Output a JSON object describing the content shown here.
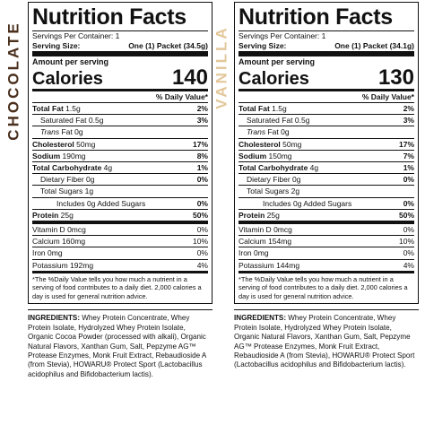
{
  "side_labels": {
    "left": "CHOCOLATE",
    "right": "VANILLA"
  },
  "colors": {
    "chocolate_label": "#4a2f1c",
    "vanilla_label": "#e3c79a"
  },
  "panels": [
    {
      "title": "Nutrition Facts",
      "servings": "Servings Per Container: 1",
      "serving_size_label": "Serving Size:",
      "serving_size_value": "One (1) Packet (34.5g)",
      "amount_per_serving": "Amount per serving",
      "calories_label": "Calories",
      "calories_value": "140",
      "dv_header": "% Daily Value*",
      "rows": {
        "total_fat": {
          "label": "Total Fat",
          "amount": "1.5g",
          "dv": "2%"
        },
        "sat_fat": {
          "label": "Saturated Fat",
          "amount": "0.5g",
          "dv": "3%"
        },
        "trans_fat": {
          "label": "Trans",
          "amount": "Fat 0g"
        },
        "cholesterol": {
          "label": "Cholesterol",
          "amount": "50mg",
          "dv": "17%"
        },
        "sodium": {
          "label": "Sodium",
          "amount": "190mg",
          "dv": "8%"
        },
        "carb": {
          "label": "Total Carbohydrate",
          "amount": "4g",
          "dv": "1%"
        },
        "fiber": {
          "label": "Dietary Fiber",
          "amount": "0g",
          "dv": "0%"
        },
        "sugars": {
          "label": "Total Sugars",
          "amount": "1g"
        },
        "added": {
          "text": "Includes 0g Added Sugars",
          "dv": "0%"
        },
        "protein": {
          "label": "Protein",
          "amount": "25g",
          "dv": "50%"
        },
        "vitd": {
          "label": "Vitamin D",
          "amount": "0mcg",
          "dv": "0%"
        },
        "calcium": {
          "label": "Calcium",
          "amount": "160mg",
          "dv": "10%"
        },
        "iron": {
          "label": "Iron",
          "amount": "0mg",
          "dv": "0%"
        },
        "potassium": {
          "label": "Potassium",
          "amount": "192mg",
          "dv": "4%"
        }
      },
      "footnote": "*The %Daily Value tells you how much a nutrient in a serving of food contributes to a daily diet. 2,000 calories a day is used for general nutrition advice.",
      "ingredients_label": "INGREDIENTS:",
      "ingredients_text": "Whey Protein Concentrate, Whey Protein Isolate, Hydrolyzed Whey Protein Isolate, Organic Cocoa Powder (processed with alkali), Organic Natural Flavors, Xanthan Gum, Salt, Pepzyme AG™ Protease Enzymes, Monk Fruit Extract, Rebaudioside A (from Stevia), HOWARU® Protect Sport (Lactobacillus acidophilus and Bifidobacterium lactis)."
    },
    {
      "title": "Nutrition Facts",
      "servings": "Servings Per Container: 1",
      "serving_size_label": "Serving Size:",
      "serving_size_value": "One (1) Packet (34.1g)",
      "amount_per_serving": "Amount per serving",
      "calories_label": "Calories",
      "calories_value": "130",
      "dv_header": "% Daily Value*",
      "rows": {
        "total_fat": {
          "label": "Total Fat",
          "amount": "1.5g",
          "dv": "2%"
        },
        "sat_fat": {
          "label": "Saturated Fat",
          "amount": "0.5g",
          "dv": "3%"
        },
        "trans_fat": {
          "label": "Trans",
          "amount": "Fat 0g"
        },
        "cholesterol": {
          "label": "Cholesterol",
          "amount": "50mg",
          "dv": "17%"
        },
        "sodium": {
          "label": "Sodium",
          "amount": "150mg",
          "dv": "7%"
        },
        "carb": {
          "label": "Total Carbohydrate",
          "amount": "4g",
          "dv": "1%"
        },
        "fiber": {
          "label": "Dietary Fiber",
          "amount": "0g",
          "dv": "0%"
        },
        "sugars": {
          "label": "Total Sugars",
          "amount": "2g"
        },
        "added": {
          "text": "Includes 0g Added Sugars",
          "dv": "0%"
        },
        "protein": {
          "label": "Protein",
          "amount": "25g",
          "dv": "50%"
        },
        "vitd": {
          "label": "Vitamin D",
          "amount": "0mcg",
          "dv": "0%"
        },
        "calcium": {
          "label": "Calcium",
          "amount": "154mg",
          "dv": "10%"
        },
        "iron": {
          "label": "Iron",
          "amount": "0mg",
          "dv": "0%"
        },
        "potassium": {
          "label": "Potassium",
          "amount": "144mg",
          "dv": "4%"
        }
      },
      "footnote": "*The %Daily Value tells you how much a nutrient in a serving of food contributes to a daily diet. 2,000 calories a day is used for general nutrition advice.",
      "ingredients_label": "INGREDIENTS:",
      "ingredients_text": "Whey Protein Concentrate, Whey Protein Isolate, Hydrolyzed Whey Protein Isolate, Organic Natural Flavors, Xanthan Gum, Salt, Pepzyme AG™ Protease Enzymes, Monk Fruit Extract, Rebaudioside A (from Stevia), HOWARU® Protect Sport (Lactobacillus acidophilus and Bifidobacterium lactis)."
    }
  ]
}
